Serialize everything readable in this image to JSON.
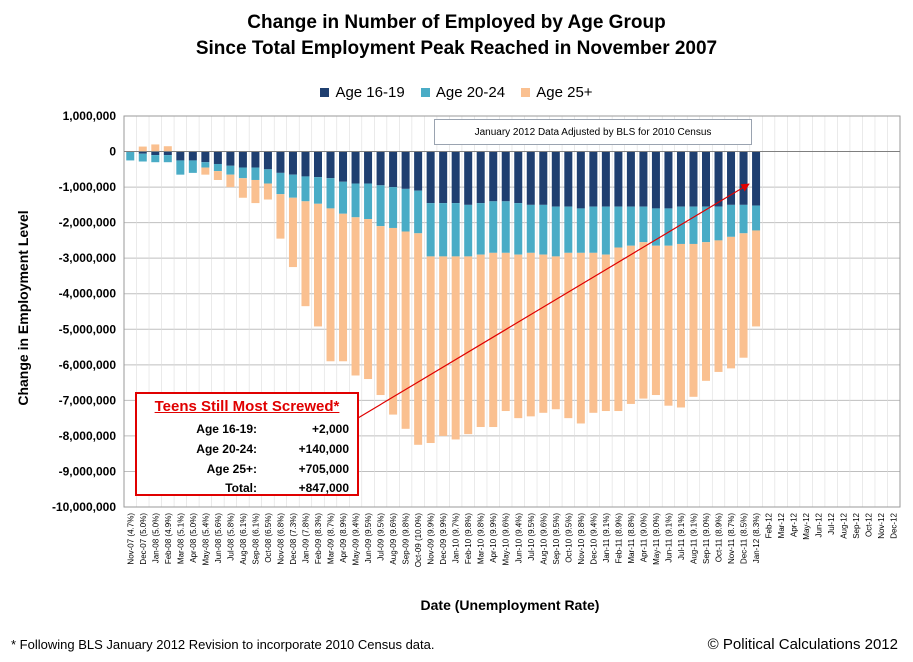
{
  "chart_data": {
    "type": "bar",
    "stacked": true,
    "title": [
      "Change in Number of Employed by Age Group",
      "Since Total Employment Peak Reached in November 2007"
    ],
    "xlabel": "Date (Unemployment Rate)",
    "ylabel": "Change in Employment Level",
    "ylim": [
      -10000000,
      1000000
    ],
    "yticks": [
      1000000,
      0,
      -1000000,
      -2000000,
      -3000000,
      -4000000,
      -5000000,
      -6000000,
      -7000000,
      -8000000,
      -9000000,
      -10000000
    ],
    "ytick_labels": [
      "1,000,000",
      "0",
      "-1,000,000",
      "-2,000,000",
      "-3,000,000",
      "-4,000,000",
      "-5,000,000",
      "-6,000,000",
      "-7,000,000",
      "-8,000,000",
      "-9,000,000",
      "-10,000,000"
    ],
    "legend_position": "top-center",
    "grid": true,
    "categories": [
      "Nov-07 (4.7%)",
      "Dec-07 (5.0%)",
      "Jan-08 (5.0%)",
      "Feb-08 (4.9%)",
      "Mar-08 (5.1%)",
      "Apr-08 (5.0%)",
      "May-08 (5.4%)",
      "Jun-08 (5.6%)",
      "Jul-08 (5.8%)",
      "Aug-08 (6.1%)",
      "Sep-08 (6.1%)",
      "Oct-08 (6.5%)",
      "Nov-08 (6.8%)",
      "Dec-08 (7.3%)",
      "Jan-09 (7.8%)",
      "Feb-09 (8.3%)",
      "Mar-09 (8.7%)",
      "Apr-09 (8.9%)",
      "May-09 (9.4%)",
      "Jun-09 (9.5%)",
      "Jul-09 (9.5%)",
      "Aug-09 (9.6%)",
      "Sep-09 (9.8%)",
      "Oct-09 (10.0%)",
      "Nov-09 (9.9%)",
      "Dec-09 (9.9%)",
      "Jan-10 (9.7%)",
      "Feb-10 (9.8%)",
      "Mar-10 (9.8%)",
      "Apr-10 (9.9%)",
      "May-10 (9.6%)",
      "Jun-10 (9.4%)",
      "Jul-10 (9.5%)",
      "Aug-10 (9.6%)",
      "Sep-10 (9.5%)",
      "Oct-10 (9.5%)",
      "Nov-10 (9.8%)",
      "Dec-10 (9.4%)",
      "Jan-11 (9.1%)",
      "Feb-11 (8.9%)",
      "Mar-11 (8.8%)",
      "Apr-11 (9.0%)",
      "May-11 (9.0%)",
      "Jun-11 (9.1%)",
      "Jul-11 (9.1%)",
      "Aug-11 (9.1%)",
      "Sep-11 (9.0%)",
      "Oct-11 (8.9%)",
      "Nov-11 (8.7%)",
      "Dec-11 (8.5%)",
      "Jan-12 (8.3%)",
      "Feb-12",
      "Mar-12",
      "Apr-12",
      "May-12",
      "Jun-12",
      "Jul-12",
      "Aug-12",
      "Sep-12",
      "Oct-12",
      "Nov-12",
      "Dec-12"
    ],
    "series": [
      {
        "name": "Age 16-19",
        "color": "#1f3f70",
        "values": [
          0,
          -60000,
          -100000,
          -100000,
          -250000,
          -250000,
          -300000,
          -350000,
          -400000,
          -450000,
          -450000,
          -500000,
          -600000,
          -650000,
          -700000,
          -720000,
          -750000,
          -850000,
          -900000,
          -900000,
          -950000,
          -1000000,
          -1050000,
          -1100000,
          -1450000,
          -1450000,
          -1450000,
          -1500000,
          -1450000,
          -1400000,
          -1400000,
          -1450000,
          -1500000,
          -1500000,
          -1550000,
          -1550000,
          -1600000,
          -1550000,
          -1550000,
          -1550000,
          -1550000,
          -1550000,
          -1600000,
          -1600000,
          -1550000,
          -1550000,
          -1550000,
          -1550000,
          -1500000,
          -1500000,
          -1520000,
          null,
          null,
          null,
          null,
          null,
          null,
          null,
          null,
          null,
          null,
          null
        ]
      },
      {
        "name": "Age 20-24",
        "color": "#4aacc6",
        "values": [
          -250000,
          -220000,
          -200000,
          -200000,
          -400000,
          -350000,
          -150000,
          -200000,
          -250000,
          -300000,
          -350000,
          -400000,
          -600000,
          -650000,
          -700000,
          -750000,
          -850000,
          -900000,
          -950000,
          -1000000,
          -1150000,
          -1150000,
          -1200000,
          -1200000,
          -1500000,
          -1500000,
          -1500000,
          -1450000,
          -1450000,
          -1450000,
          -1450000,
          -1450000,
          -1350000,
          -1400000,
          -1400000,
          -1300000,
          -1250000,
          -1300000,
          -1350000,
          -1150000,
          -1100000,
          -1000000,
          -1050000,
          -1050000,
          -1050000,
          -1050000,
          -1000000,
          -950000,
          -900000,
          -800000,
          -700000,
          null,
          null,
          null,
          null,
          null,
          null,
          null,
          null,
          null,
          null,
          null
        ]
      },
      {
        "name": "Age 25+",
        "color": "#fac090",
        "values": [
          0,
          140000,
          200000,
          150000,
          0,
          0,
          -200000,
          -250000,
          -350000,
          -550000,
          -650000,
          -450000,
          -1250000,
          -1950000,
          -2950000,
          -3450000,
          -4300000,
          -4150000,
          -4450000,
          -4500000,
          -4750000,
          -5250000,
          -5550000,
          -5950000,
          -5250000,
          -5050000,
          -5150000,
          -5000000,
          -4850000,
          -4900000,
          -4450000,
          -4600000,
          -4600000,
          -4450000,
          -4300000,
          -4650000,
          -4800000,
          -4500000,
          -4400000,
          -4600000,
          -4450000,
          -4400000,
          -4200000,
          -4500000,
          -4600000,
          -4300000,
          -3900000,
          -3700000,
          -3700000,
          -3500000,
          -2700000,
          null,
          null,
          null,
          null,
          null,
          null,
          null,
          null,
          null,
          null,
          null
        ]
      }
    ]
  },
  "legend": {
    "items": [
      "Age 16-19",
      "Age 20-24",
      "Age 25+"
    ]
  },
  "note": "January 2012 Data Adjusted by BLS for 2010 Census",
  "callout": {
    "title": "Teens Still Most Screwed*",
    "rows": [
      {
        "label": "Age 16-19:",
        "value": "+2,000"
      },
      {
        "label": "Age 20-24:",
        "value": "+140,000"
      },
      {
        "label": "Age 25+:",
        "value": "+705,000"
      },
      {
        "label": "Total:",
        "value": "+847,000"
      }
    ]
  },
  "footnote": "* Following BLS January 2012 Revision to incorporate 2010 Census data.",
  "copyright": "© Political Calculations 2012",
  "colors": {
    "grid": "#bfbfbf",
    "arrow": "#e00000",
    "callout_border": "#e00000"
  }
}
